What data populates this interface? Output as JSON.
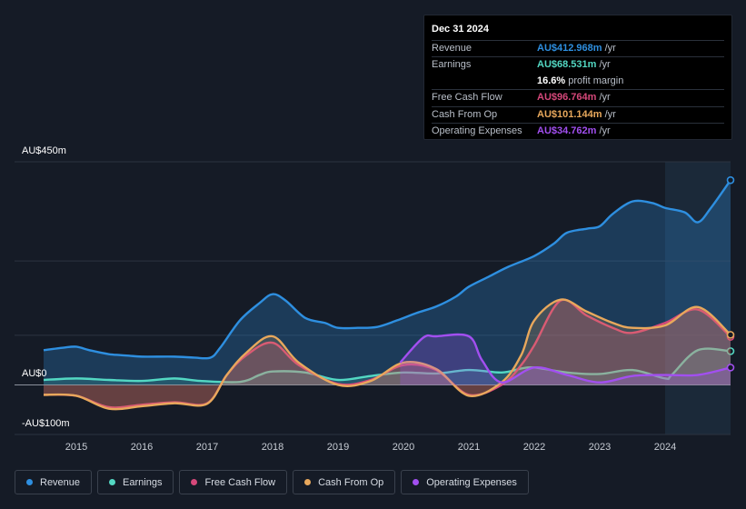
{
  "tooltip": {
    "date": "Dec 31 2024",
    "rows": [
      {
        "label": "Revenue",
        "value": "AU$412.968m",
        "unit": "/yr",
        "color": "#2e8fe0"
      },
      {
        "label": "Earnings",
        "value": "AU$68.531m",
        "unit": "/yr",
        "color": "#53d8c3"
      },
      {
        "label": "",
        "value": "16.6%",
        "unit": "profit margin",
        "color": "#ffffff"
      },
      {
        "label": "Free Cash Flow",
        "value": "AU$96.764m",
        "unit": "/yr",
        "color": "#d6487a"
      },
      {
        "label": "Cash From Op",
        "value": "AU$101.144m",
        "unit": "/yr",
        "color": "#e8a85c"
      },
      {
        "label": "Operating Expenses",
        "value": "AU$34.762m",
        "unit": "/yr",
        "color": "#a24ff0"
      }
    ]
  },
  "legend": [
    {
      "label": "Revenue",
      "color": "#2e8fe0"
    },
    {
      "label": "Earnings",
      "color": "#53d8c3"
    },
    {
      "label": "Free Cash Flow",
      "color": "#d6487a"
    },
    {
      "label": "Cash From Op",
      "color": "#e8a85c"
    },
    {
      "label": "Operating Expenses",
      "color": "#a24ff0"
    }
  ],
  "chart_data": {
    "type": "area",
    "title": "",
    "xlabel": "",
    "ylabel": "",
    "y_tick_labels": [
      "AU$450m",
      "AU$0",
      "-AU$100m"
    ],
    "ylim": [
      -100,
      450
    ],
    "xlim": [
      2014.5,
      2025.0
    ],
    "x_ticks": [
      2015,
      2016,
      2017,
      2018,
      2019,
      2020,
      2021,
      2022,
      2023,
      2024
    ],
    "highlight_from": 2024.0,
    "series": [
      {
        "name": "Revenue",
        "color": "#2e8fe0",
        "points": [
          [
            2014.5,
            70
          ],
          [
            2014.8,
            75
          ],
          [
            2015.0,
            77
          ],
          [
            2015.2,
            70
          ],
          [
            2015.5,
            62
          ],
          [
            2015.8,
            59
          ],
          [
            2016.0,
            57
          ],
          [
            2016.5,
            57
          ],
          [
            2016.8,
            55
          ],
          [
            2017.05,
            55
          ],
          [
            2017.2,
            75
          ],
          [
            2017.5,
            130
          ],
          [
            2017.8,
            165
          ],
          [
            2018.0,
            183
          ],
          [
            2018.2,
            170
          ],
          [
            2018.5,
            135
          ],
          [
            2018.8,
            125
          ],
          [
            2019.0,
            115
          ],
          [
            2019.3,
            115
          ],
          [
            2019.6,
            117
          ],
          [
            2019.9,
            130
          ],
          [
            2020.2,
            145
          ],
          [
            2020.5,
            158
          ],
          [
            2020.8,
            178
          ],
          [
            2021.0,
            198
          ],
          [
            2021.3,
            218
          ],
          [
            2021.6,
            238
          ],
          [
            2022.0,
            260
          ],
          [
            2022.3,
            285
          ],
          [
            2022.5,
            307
          ],
          [
            2022.8,
            315
          ],
          [
            2023.0,
            320
          ],
          [
            2023.2,
            345
          ],
          [
            2023.5,
            370
          ],
          [
            2023.8,
            367
          ],
          [
            2024.0,
            357
          ],
          [
            2024.3,
            348
          ],
          [
            2024.5,
            328
          ],
          [
            2024.7,
            357
          ],
          [
            2025.0,
            413
          ]
        ]
      },
      {
        "name": "Earnings",
        "color": "#53d8c3",
        "points": [
          [
            2014.5,
            10
          ],
          [
            2015.0,
            13
          ],
          [
            2015.5,
            10
          ],
          [
            2016.0,
            8
          ],
          [
            2016.5,
            13
          ],
          [
            2016.9,
            8
          ],
          [
            2017.5,
            6
          ],
          [
            2017.8,
            20
          ],
          [
            2018.0,
            27
          ],
          [
            2018.5,
            25
          ],
          [
            2019.0,
            10
          ],
          [
            2019.5,
            18
          ],
          [
            2020.0,
            25
          ],
          [
            2020.5,
            23
          ],
          [
            2021.0,
            30
          ],
          [
            2021.5,
            25
          ],
          [
            2021.8,
            33
          ],
          [
            2022.0,
            35
          ],
          [
            2022.5,
            25
          ],
          [
            2023.0,
            22
          ],
          [
            2023.5,
            30
          ],
          [
            2024.0,
            13
          ],
          [
            2024.1,
            20
          ],
          [
            2024.5,
            70
          ],
          [
            2025.0,
            68
          ]
        ]
      },
      {
        "name": "Free Cash Flow",
        "color": "#d6487a",
        "points": [
          [
            2014.5,
            -20
          ],
          [
            2015.0,
            -22
          ],
          [
            2015.5,
            -45
          ],
          [
            2016.0,
            -40
          ],
          [
            2016.5,
            -35
          ],
          [
            2017.0,
            -37
          ],
          [
            2017.3,
            20
          ],
          [
            2017.6,
            60
          ],
          [
            2018.0,
            85
          ],
          [
            2018.4,
            40
          ],
          [
            2019.0,
            2
          ],
          [
            2019.5,
            10
          ],
          [
            2020.0,
            40
          ],
          [
            2020.5,
            30
          ],
          [
            2021.0,
            -20
          ],
          [
            2021.5,
            0
          ],
          [
            2021.8,
            40
          ],
          [
            2022.0,
            80
          ],
          [
            2022.4,
            170
          ],
          [
            2022.8,
            140
          ],
          [
            2023.2,
            115
          ],
          [
            2023.5,
            105
          ],
          [
            2024.0,
            125
          ],
          [
            2024.5,
            152
          ],
          [
            2025.0,
            97
          ]
        ]
      },
      {
        "name": "Cash From Op",
        "color": "#e8a85c",
        "points": [
          [
            2014.5,
            -20
          ],
          [
            2015.0,
            -22
          ],
          [
            2015.5,
            -48
          ],
          [
            2016.0,
            -43
          ],
          [
            2016.5,
            -37
          ],
          [
            2017.0,
            -38
          ],
          [
            2017.3,
            20
          ],
          [
            2017.6,
            65
          ],
          [
            2018.0,
            98
          ],
          [
            2018.4,
            45
          ],
          [
            2019.0,
            0
          ],
          [
            2019.5,
            8
          ],
          [
            2020.0,
            45
          ],
          [
            2020.5,
            32
          ],
          [
            2021.0,
            -22
          ],
          [
            2021.5,
            5
          ],
          [
            2021.8,
            60
          ],
          [
            2022.0,
            130
          ],
          [
            2022.4,
            172
          ],
          [
            2022.8,
            148
          ],
          [
            2023.2,
            125
          ],
          [
            2023.5,
            115
          ],
          [
            2024.0,
            120
          ],
          [
            2024.5,
            157
          ],
          [
            2025.0,
            101
          ]
        ]
      },
      {
        "name": "Operating Expenses",
        "color": "#a24ff0",
        "points": [
          [
            2019.95,
            45
          ],
          [
            2020.3,
            95
          ],
          [
            2020.5,
            98
          ],
          [
            2021.0,
            98
          ],
          [
            2021.2,
            50
          ],
          [
            2021.5,
            5
          ],
          [
            2022.0,
            35
          ],
          [
            2022.5,
            20
          ],
          [
            2023.0,
            5
          ],
          [
            2023.5,
            18
          ],
          [
            2024.0,
            20
          ],
          [
            2024.5,
            20
          ],
          [
            2025.0,
            35
          ]
        ]
      }
    ]
  }
}
